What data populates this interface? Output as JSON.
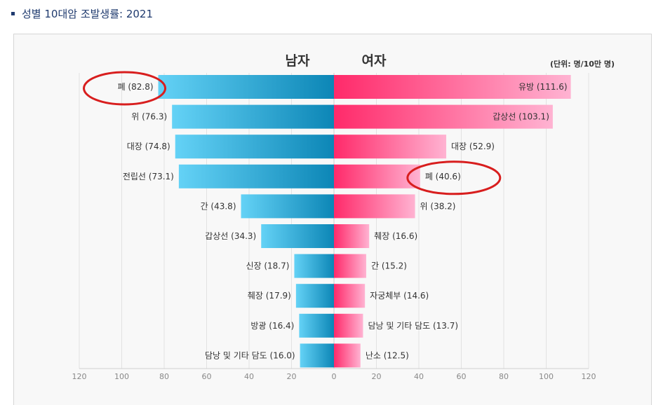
{
  "page": {
    "title": "성별 10대암 조발생률: 2021"
  },
  "chart_data": {
    "type": "bar",
    "orientation": "horizontal-butterfly",
    "left_header": "남자",
    "right_header": "여자",
    "unit_note": "(단위: 명/10만 명)",
    "xlim": [
      0,
      120
    ],
    "x_ticks": [
      120,
      100,
      80,
      60,
      40,
      20,
      0,
      20,
      40,
      60,
      80,
      100,
      120
    ],
    "grid": true,
    "series": [
      {
        "name": "남자",
        "categories": [
          "폐",
          "위",
          "대장",
          "전립선",
          "간",
          "갑상선",
          "신장",
          "췌장",
          "방광",
          "담낭 및 기타 담도"
        ],
        "values": [
          82.8,
          76.3,
          74.8,
          73.1,
          43.8,
          34.3,
          18.7,
          17.9,
          16.4,
          16.0
        ]
      },
      {
        "name": "여자",
        "categories": [
          "유방",
          "갑상선",
          "대장",
          "폐",
          "위",
          "췌장",
          "간",
          "자궁체부",
          "담낭 및 기타 담도",
          "난소"
        ],
        "values": [
          111.6,
          103.1,
          52.9,
          40.6,
          38.2,
          16.6,
          15.2,
          14.6,
          13.7,
          12.5
        ]
      }
    ],
    "highlighted": [
      {
        "series": "남자",
        "category": "폐"
      },
      {
        "series": "여자",
        "category": "폐"
      }
    ],
    "colors": {
      "male_dark": "#0c86b6",
      "male_light": "#64d2f6",
      "female_dark": "#ff2a6a",
      "female_light": "#ffb3d2",
      "highlight_ring": "#d81e1e"
    }
  }
}
